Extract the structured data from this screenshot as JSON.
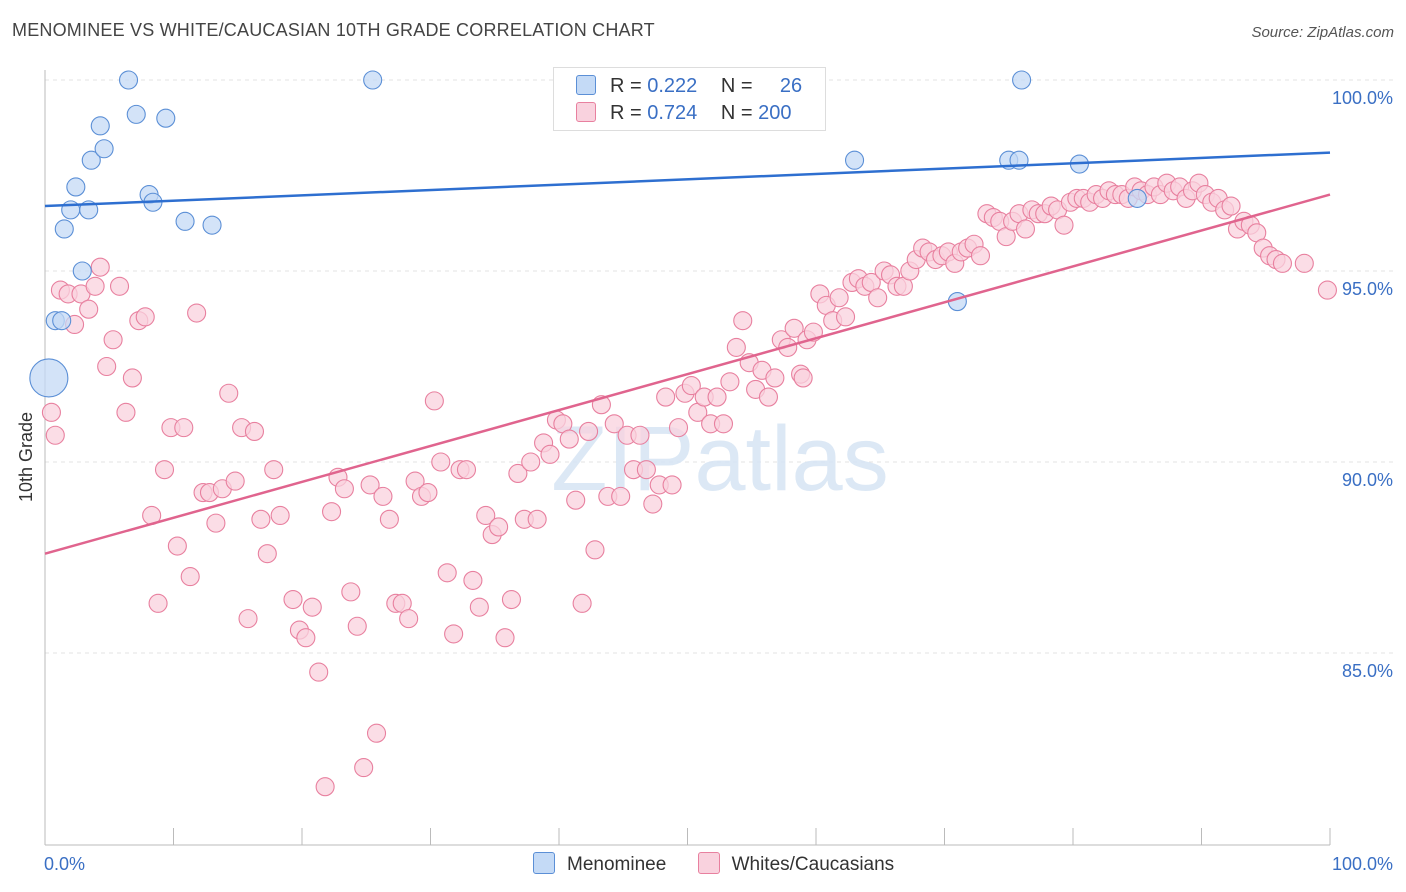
{
  "title": "MENOMINEE VS WHITE/CAUCASIAN 10TH GRADE CORRELATION CHART",
  "source": "Source: ZipAtlas.com",
  "watermark": "ZIPatlas",
  "legend_top": [
    {
      "r_label": "R =",
      "r_value": "0.222",
      "n_label": "N =",
      "n_value": "26",
      "color": "#a8c8f0"
    },
    {
      "r_label": "R =",
      "r_value": "0.724",
      "n_label": "N =",
      "n_value": "200",
      "color": "#f5b8cb"
    }
  ],
  "chart_data": {
    "type": "scatter",
    "title": "MENOMINEE VS WHITE/CAUCASIAN 10TH GRADE CORRELATION CHART",
    "xlabel": "",
    "ylabel": "10th Grade",
    "xlim": [
      0,
      100
    ],
    "ylim": [
      80.5,
      100.8
    ],
    "x_tick_labels": [
      "0.0%",
      "100.0%"
    ],
    "y_ticks": [
      85,
      90,
      95,
      100
    ],
    "y_tick_labels": [
      "85.0%",
      "90.0%",
      "95.0%",
      "100.0%"
    ],
    "grid": true,
    "legend_position": "top-center",
    "series": [
      {
        "name": "Menominee",
        "color": "#5b8fd6",
        "fill": "#c4daf6",
        "trend": {
          "x": [
            0,
            100
          ],
          "y": [
            96.7,
            98.1
          ],
          "color": "#2e6fd0"
        },
        "points": [
          {
            "x": 0.3,
            "y": 92.2,
            "big": true
          },
          {
            "x": 0.8,
            "y": 93.7
          },
          {
            "x": 1.3,
            "y": 93.7
          },
          {
            "x": 1.5,
            "y": 96.1
          },
          {
            "x": 2.0,
            "y": 96.6
          },
          {
            "x": 2.4,
            "y": 97.2
          },
          {
            "x": 2.9,
            "y": 95.0
          },
          {
            "x": 3.4,
            "y": 96.6
          },
          {
            "x": 3.6,
            "y": 97.9
          },
          {
            "x": 4.3,
            "y": 98.8
          },
          {
            "x": 4.6,
            "y": 98.2
          },
          {
            "x": 6.5,
            "y": 100.0
          },
          {
            "x": 7.1,
            "y": 99.1
          },
          {
            "x": 8.1,
            "y": 97.0
          },
          {
            "x": 8.4,
            "y": 96.8
          },
          {
            "x": 9.4,
            "y": 99.0
          },
          {
            "x": 10.9,
            "y": 96.3
          },
          {
            "x": 13.0,
            "y": 96.2
          },
          {
            "x": 25.5,
            "y": 100.0
          },
          {
            "x": 63.0,
            "y": 97.9
          },
          {
            "x": 71.0,
            "y": 94.2
          },
          {
            "x": 75.0,
            "y": 97.9
          },
          {
            "x": 75.8,
            "y": 97.9
          },
          {
            "x": 76.0,
            "y": 100.0
          },
          {
            "x": 80.5,
            "y": 97.8
          },
          {
            "x": 85.0,
            "y": 96.9
          }
        ]
      },
      {
        "name": "Whites/Caucasians",
        "color": "#e8809f",
        "fill": "#f9d2de",
        "trend": {
          "x": [
            0,
            100
          ],
          "y": [
            87.6,
            97.0
          ],
          "color": "#e0648e"
        },
        "points": [
          {
            "x": 0.5,
            "y": 91.3
          },
          {
            "x": 0.8,
            "y": 90.7
          },
          {
            "x": 1.2,
            "y": 94.5
          },
          {
            "x": 1.8,
            "y": 94.4
          },
          {
            "x": 2.3,
            "y": 93.6
          },
          {
            "x": 2.8,
            "y": 94.4
          },
          {
            "x": 3.4,
            "y": 94.0
          },
          {
            "x": 3.9,
            "y": 94.6
          },
          {
            "x": 4.3,
            "y": 95.1
          },
          {
            "x": 4.8,
            "y": 92.5
          },
          {
            "x": 5.3,
            "y": 93.2
          },
          {
            "x": 5.8,
            "y": 94.6
          },
          {
            "x": 6.3,
            "y": 91.3
          },
          {
            "x": 6.8,
            "y": 92.2
          },
          {
            "x": 7.3,
            "y": 93.7
          },
          {
            "x": 7.8,
            "y": 93.8
          },
          {
            "x": 8.3,
            "y": 88.6
          },
          {
            "x": 8.8,
            "y": 86.3
          },
          {
            "x": 9.3,
            "y": 89.8
          },
          {
            "x": 9.8,
            "y": 90.9
          },
          {
            "x": 10.3,
            "y": 87.8
          },
          {
            "x": 10.8,
            "y": 90.9
          },
          {
            "x": 11.3,
            "y": 87.0
          },
          {
            "x": 11.8,
            "y": 93.9
          },
          {
            "x": 12.3,
            "y": 89.2
          },
          {
            "x": 12.8,
            "y": 89.2
          },
          {
            "x": 13.3,
            "y": 88.4
          },
          {
            "x": 13.8,
            "y": 89.3
          },
          {
            "x": 14.3,
            "y": 91.8
          },
          {
            "x": 14.8,
            "y": 89.5
          },
          {
            "x": 15.3,
            "y": 90.9
          },
          {
            "x": 15.8,
            "y": 85.9
          },
          {
            "x": 16.3,
            "y": 90.8
          },
          {
            "x": 16.8,
            "y": 88.5
          },
          {
            "x": 17.3,
            "y": 87.6
          },
          {
            "x": 17.8,
            "y": 89.8
          },
          {
            "x": 18.3,
            "y": 88.6
          },
          {
            "x": 19.3,
            "y": 86.4
          },
          {
            "x": 19.8,
            "y": 85.6
          },
          {
            "x": 20.3,
            "y": 85.4
          },
          {
            "x": 20.8,
            "y": 86.2
          },
          {
            "x": 21.3,
            "y": 84.5
          },
          {
            "x": 21.8,
            "y": 81.5
          },
          {
            "x": 22.3,
            "y": 88.7
          },
          {
            "x": 22.8,
            "y": 89.6
          },
          {
            "x": 23.3,
            "y": 89.3
          },
          {
            "x": 23.8,
            "y": 86.6
          },
          {
            "x": 24.3,
            "y": 85.7
          },
          {
            "x": 24.8,
            "y": 82.0
          },
          {
            "x": 25.3,
            "y": 89.4
          },
          {
            "x": 25.8,
            "y": 82.9
          },
          {
            "x": 26.3,
            "y": 89.1
          },
          {
            "x": 26.8,
            "y": 88.5
          },
          {
            "x": 27.3,
            "y": 86.3
          },
          {
            "x": 27.8,
            "y": 86.3
          },
          {
            "x": 28.3,
            "y": 85.9
          },
          {
            "x": 28.8,
            "y": 89.5
          },
          {
            "x": 29.3,
            "y": 89.1
          },
          {
            "x": 29.8,
            "y": 89.2
          },
          {
            "x": 30.3,
            "y": 91.6
          },
          {
            "x": 30.8,
            "y": 90.0
          },
          {
            "x": 31.3,
            "y": 87.1
          },
          {
            "x": 31.8,
            "y": 85.5
          },
          {
            "x": 32.3,
            "y": 89.8
          },
          {
            "x": 32.8,
            "y": 89.8
          },
          {
            "x": 33.3,
            "y": 86.9
          },
          {
            "x": 33.8,
            "y": 86.2
          },
          {
            "x": 34.3,
            "y": 88.6
          },
          {
            "x": 34.8,
            "y": 88.1
          },
          {
            "x": 35.3,
            "y": 88.3
          },
          {
            "x": 35.8,
            "y": 85.4
          },
          {
            "x": 36.3,
            "y": 86.4
          },
          {
            "x": 36.8,
            "y": 89.7
          },
          {
            "x": 37.3,
            "y": 88.5
          },
          {
            "x": 37.8,
            "y": 90.0
          },
          {
            "x": 38.3,
            "y": 88.5
          },
          {
            "x": 38.8,
            "y": 90.5
          },
          {
            "x": 39.3,
            "y": 90.2
          },
          {
            "x": 39.8,
            "y": 91.1
          },
          {
            "x": 40.3,
            "y": 91.0
          },
          {
            "x": 40.8,
            "y": 90.6
          },
          {
            "x": 41.3,
            "y": 89.0
          },
          {
            "x": 41.8,
            "y": 86.3
          },
          {
            "x": 42.3,
            "y": 90.8
          },
          {
            "x": 42.8,
            "y": 87.7
          },
          {
            "x": 43.3,
            "y": 91.5
          },
          {
            "x": 43.8,
            "y": 89.1
          },
          {
            "x": 44.3,
            "y": 91.0
          },
          {
            "x": 44.8,
            "y": 89.1
          },
          {
            "x": 45.3,
            "y": 90.7
          },
          {
            "x": 45.8,
            "y": 89.8
          },
          {
            "x": 46.3,
            "y": 90.7
          },
          {
            "x": 46.8,
            "y": 89.8
          },
          {
            "x": 47.3,
            "y": 88.9
          },
          {
            "x": 47.8,
            "y": 89.4
          },
          {
            "x": 48.3,
            "y": 91.7
          },
          {
            "x": 48.8,
            "y": 89.4
          },
          {
            "x": 49.3,
            "y": 90.9
          },
          {
            "x": 49.8,
            "y": 91.8
          },
          {
            "x": 50.3,
            "y": 92.0
          },
          {
            "x": 50.8,
            "y": 91.3
          },
          {
            "x": 51.3,
            "y": 91.7
          },
          {
            "x": 51.8,
            "y": 91.0
          },
          {
            "x": 52.3,
            "y": 91.7
          },
          {
            "x": 52.8,
            "y": 91.0
          },
          {
            "x": 53.3,
            "y": 92.1
          },
          {
            "x": 53.8,
            "y": 93.0
          },
          {
            "x": 54.3,
            "y": 93.7
          },
          {
            "x": 54.8,
            "y": 92.6
          },
          {
            "x": 55.3,
            "y": 91.9
          },
          {
            "x": 55.8,
            "y": 92.4
          },
          {
            "x": 56.3,
            "y": 91.7
          },
          {
            "x": 56.8,
            "y": 92.2
          },
          {
            "x": 57.3,
            "y": 93.2
          },
          {
            "x": 57.8,
            "y": 93.0
          },
          {
            "x": 58.3,
            "y": 93.5
          },
          {
            "x": 58.8,
            "y": 92.3
          },
          {
            "x": 59.3,
            "y": 93.2
          },
          {
            "x": 59.8,
            "y": 93.4
          },
          {
            "x": 60.3,
            "y": 94.4
          },
          {
            "x": 60.8,
            "y": 94.1
          },
          {
            "x": 61.3,
            "y": 93.7
          },
          {
            "x": 61.8,
            "y": 94.3
          },
          {
            "x": 62.3,
            "y": 93.8
          },
          {
            "x": 62.8,
            "y": 94.7
          },
          {
            "x": 63.3,
            "y": 94.8
          },
          {
            "x": 63.8,
            "y": 94.6
          },
          {
            "x": 64.3,
            "y": 94.7
          },
          {
            "x": 64.8,
            "y": 94.3
          },
          {
            "x": 65.3,
            "y": 95.0
          },
          {
            "x": 65.8,
            "y": 94.9
          },
          {
            "x": 66.3,
            "y": 94.6
          },
          {
            "x": 66.8,
            "y": 94.6
          },
          {
            "x": 67.3,
            "y": 95.0
          },
          {
            "x": 67.8,
            "y": 95.3
          },
          {
            "x": 68.3,
            "y": 95.6
          },
          {
            "x": 68.8,
            "y": 95.5
          },
          {
            "x": 69.3,
            "y": 95.3
          },
          {
            "x": 69.8,
            "y": 95.4
          },
          {
            "x": 70.3,
            "y": 95.5
          },
          {
            "x": 70.8,
            "y": 95.2
          },
          {
            "x": 71.3,
            "y": 95.5
          },
          {
            "x": 71.8,
            "y": 95.6
          },
          {
            "x": 72.3,
            "y": 95.7
          },
          {
            "x": 72.8,
            "y": 95.4
          },
          {
            "x": 73.3,
            "y": 96.5
          },
          {
            "x": 73.8,
            "y": 96.4
          },
          {
            "x": 74.3,
            "y": 96.3
          },
          {
            "x": 74.8,
            "y": 95.9
          },
          {
            "x": 75.3,
            "y": 96.3
          },
          {
            "x": 75.8,
            "y": 96.5
          },
          {
            "x": 76.3,
            "y": 96.1
          },
          {
            "x": 76.8,
            "y": 96.6
          },
          {
            "x": 77.3,
            "y": 96.5
          },
          {
            "x": 77.8,
            "y": 96.5
          },
          {
            "x": 78.3,
            "y": 96.7
          },
          {
            "x": 78.8,
            "y": 96.6
          },
          {
            "x": 79.3,
            "y": 96.2
          },
          {
            "x": 79.8,
            "y": 96.8
          },
          {
            "x": 80.3,
            "y": 96.9
          },
          {
            "x": 80.8,
            "y": 96.9
          },
          {
            "x": 81.3,
            "y": 96.8
          },
          {
            "x": 81.8,
            "y": 97.0
          },
          {
            "x": 82.3,
            "y": 96.9
          },
          {
            "x": 82.8,
            "y": 97.1
          },
          {
            "x": 83.3,
            "y": 97.0
          },
          {
            "x": 83.8,
            "y": 97.0
          },
          {
            "x": 84.3,
            "y": 96.9
          },
          {
            "x": 84.8,
            "y": 97.2
          },
          {
            "x": 85.3,
            "y": 97.1
          },
          {
            "x": 85.8,
            "y": 97.0
          },
          {
            "x": 86.3,
            "y": 97.2
          },
          {
            "x": 86.8,
            "y": 97.0
          },
          {
            "x": 87.3,
            "y": 97.3
          },
          {
            "x": 87.8,
            "y": 97.1
          },
          {
            "x": 88.3,
            "y": 97.2
          },
          {
            "x": 88.8,
            "y": 96.9
          },
          {
            "x": 89.3,
            "y": 97.1
          },
          {
            "x": 89.8,
            "y": 97.3
          },
          {
            "x": 90.3,
            "y": 97.0
          },
          {
            "x": 90.8,
            "y": 96.8
          },
          {
            "x": 91.3,
            "y": 96.9
          },
          {
            "x": 91.8,
            "y": 96.6
          },
          {
            "x": 92.3,
            "y": 96.7
          },
          {
            "x": 92.8,
            "y": 96.1
          },
          {
            "x": 93.3,
            "y": 96.3
          },
          {
            "x": 93.8,
            "y": 96.2
          },
          {
            "x": 94.3,
            "y": 96.0
          },
          {
            "x": 94.8,
            "y": 95.6
          },
          {
            "x": 95.3,
            "y": 95.4
          },
          {
            "x": 95.8,
            "y": 95.3
          },
          {
            "x": 96.3,
            "y": 95.2
          },
          {
            "x": 98.0,
            "y": 95.2
          },
          {
            "x": 99.8,
            "y": 94.5
          },
          {
            "x": 59.0,
            "y": 92.2
          }
        ]
      }
    ]
  }
}
